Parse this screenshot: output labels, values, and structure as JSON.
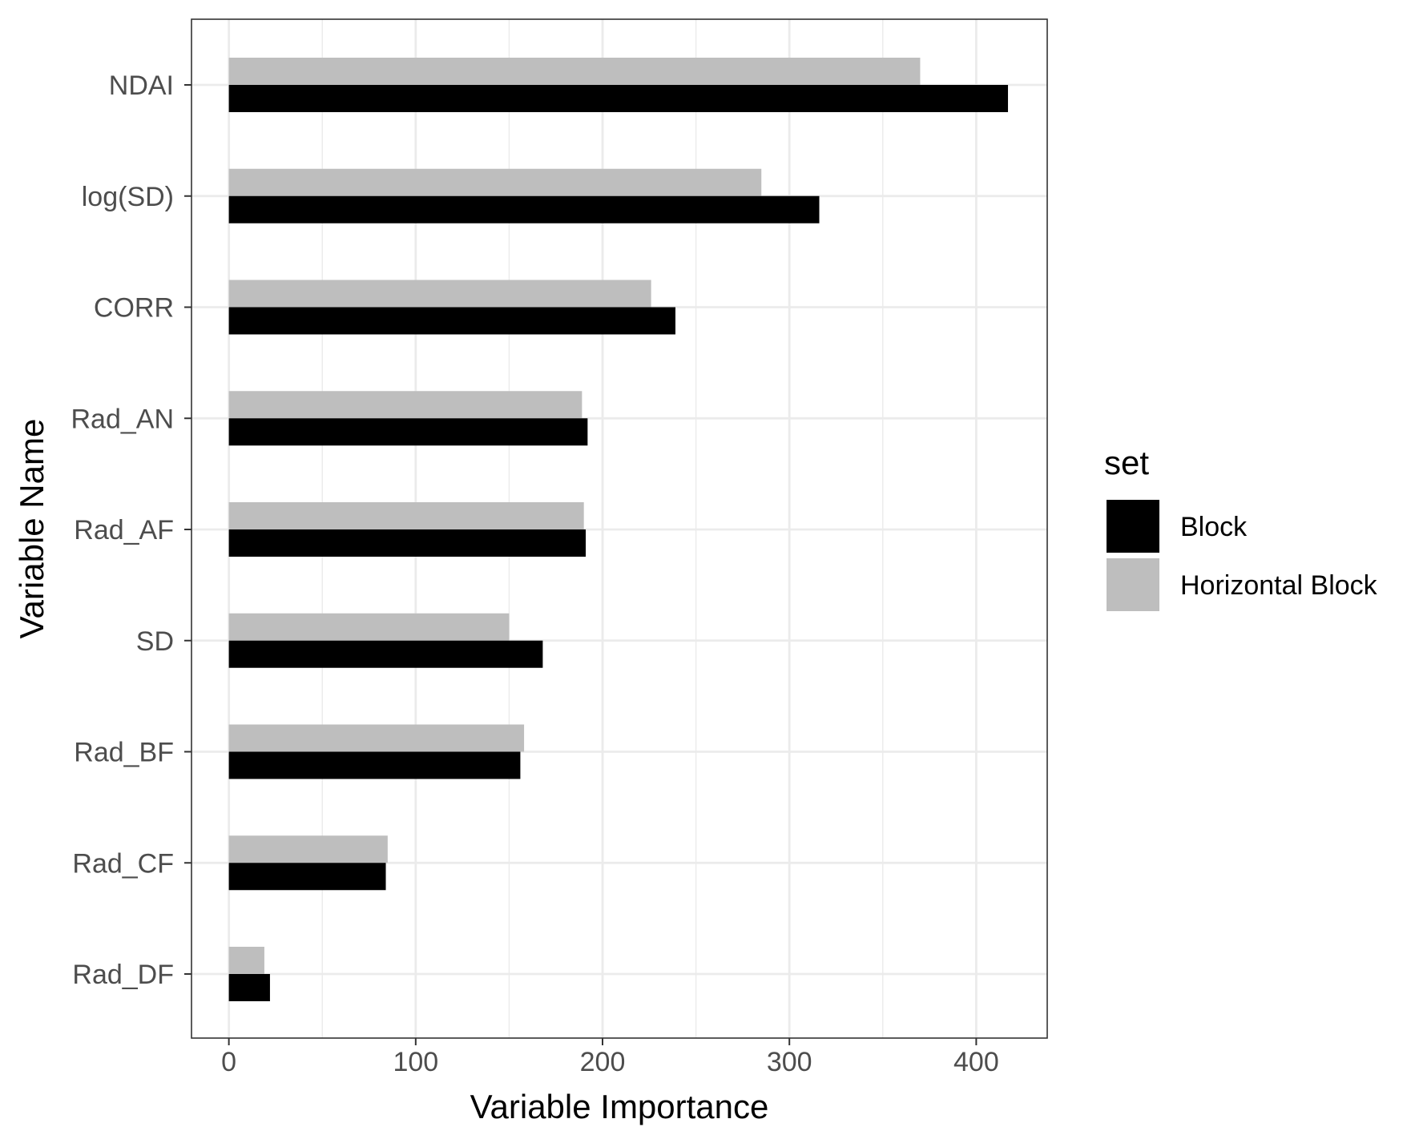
{
  "chart_data": {
    "type": "bar",
    "orientation": "horizontal",
    "xlabel": "Variable Importance",
    "ylabel": "Variable Name",
    "xlim": [
      -20,
      438
    ],
    "xticks": [
      0,
      100,
      200,
      300,
      400
    ],
    "grid": true,
    "legend": {
      "title": "set",
      "placement": "right"
    },
    "categories": [
      "NDAI",
      "log(SD)",
      "CORR",
      "Rad_AN",
      "Rad_AF",
      "SD",
      "Rad_BF",
      "Rad_CF",
      "Rad_DF"
    ],
    "series": [
      {
        "name": "Block",
        "color": "#000000",
        "values": [
          417,
          316,
          239,
          192,
          191,
          168,
          156,
          84,
          22
        ]
      },
      {
        "name": "Horizontal Block",
        "color": "#bebebe",
        "values": [
          370,
          285,
          226,
          189,
          190,
          150,
          158,
          85,
          19
        ]
      }
    ]
  }
}
